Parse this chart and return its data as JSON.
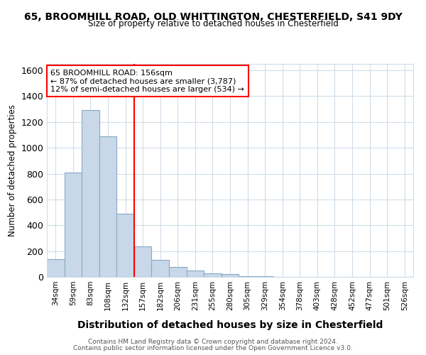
{
  "title1": "65, BROOMHILL ROAD, OLD WHITTINGTON, CHESTERFIELD, S41 9DY",
  "title2": "Size of property relative to detached houses in Chesterfield",
  "xlabel": "Distribution of detached houses by size in Chesterfield",
  "ylabel": "Number of detached properties",
  "categories": [
    "34sqm",
    "59sqm",
    "83sqm",
    "108sqm",
    "132sqm",
    "157sqm",
    "182sqm",
    "206sqm",
    "231sqm",
    "255sqm",
    "280sqm",
    "305sqm",
    "329sqm",
    "354sqm",
    "378sqm",
    "403sqm",
    "428sqm",
    "452sqm",
    "477sqm",
    "501sqm",
    "526sqm"
  ],
  "values": [
    140,
    810,
    1295,
    1090,
    490,
    235,
    130,
    75,
    50,
    30,
    20,
    5,
    5,
    2,
    2,
    2,
    2,
    1,
    1,
    1,
    1
  ],
  "bar_color": "#c8d8e8",
  "bar_edge_color": "#88aac8",
  "red_line_index": 5,
  "annotation_line1": "65 BROOMHILL ROAD: 156sqm",
  "annotation_line2": "← 87% of detached houses are smaller (3,787)",
  "annotation_line3": "12% of semi-detached houses are larger (534) →",
  "ylim": [
    0,
    1650
  ],
  "yticks": [
    0,
    200,
    400,
    600,
    800,
    1000,
    1200,
    1400,
    1600
  ],
  "footer1": "Contains HM Land Registry data © Crown copyright and database right 2024.",
  "footer2": "Contains public sector information licensed under the Open Government Licence v3.0.",
  "background_color": "#ffffff",
  "grid_color": "#d0dce8"
}
